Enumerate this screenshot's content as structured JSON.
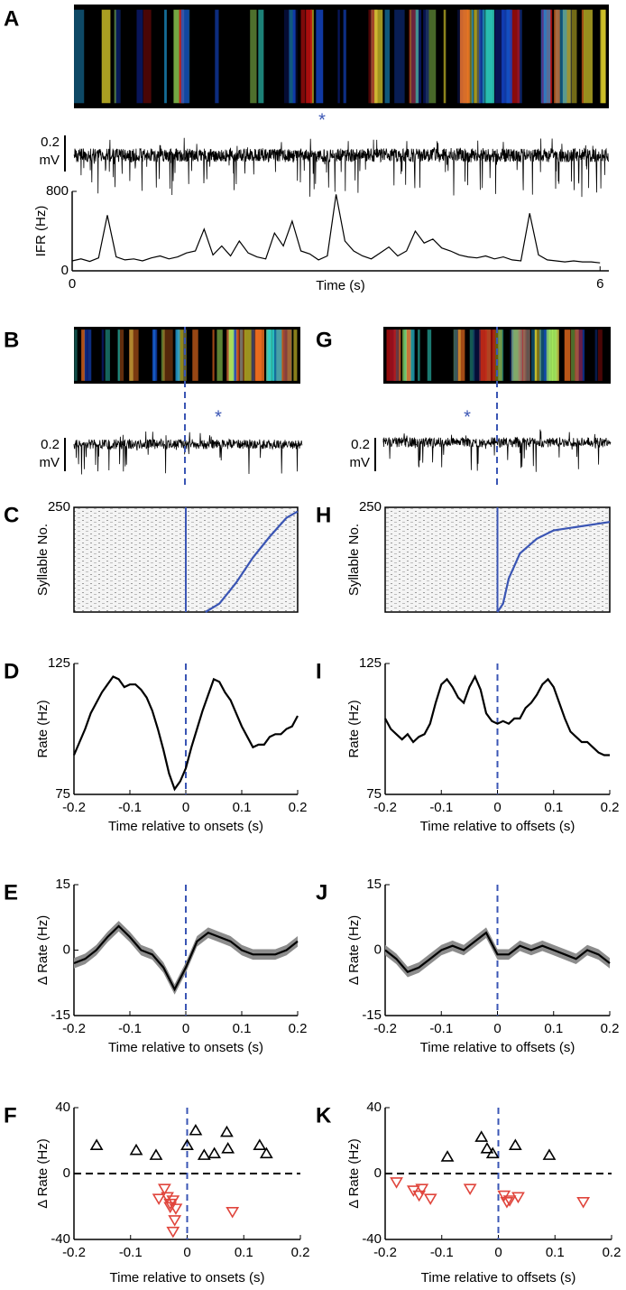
{
  "panel_labels": [
    "A",
    "B",
    "G",
    "C",
    "H",
    "D",
    "I",
    "E",
    "J",
    "F",
    "K"
  ],
  "scale_bars": [
    {
      "value": "0.2",
      "unit": "mV"
    },
    {
      "value": "0.2",
      "unit": "mV"
    },
    {
      "value": "0.2",
      "unit": "mV"
    }
  ],
  "asterisks": [
    "*",
    "*",
    "*"
  ],
  "chart_data": [
    {
      "type": "line",
      "ylabel": "IFR (Hz)",
      "xlabel": "Time (s)",
      "color": "#000000",
      "xlim": [
        0,
        6.1
      ],
      "ylim": [
        0,
        800
      ],
      "xticks": [
        0,
        6
      ],
      "yticks": [
        0,
        800
      ],
      "x": [
        0,
        0.1,
        0.2,
        0.3,
        0.4,
        0.5,
        0.6,
        0.7,
        0.8,
        0.9,
        1,
        1.1,
        1.2,
        1.3,
        1.4,
        1.5,
        1.6,
        1.7,
        1.8,
        1.9,
        2,
        2.1,
        2.2,
        2.3,
        2.4,
        2.5,
        2.6,
        2.7,
        2.8,
        2.9,
        3,
        3.1,
        3.2,
        3.3,
        3.4,
        3.5,
        3.6,
        3.7,
        3.8,
        3.9,
        4,
        4.1,
        4.2,
        4.3,
        4.4,
        4.5,
        4.6,
        4.7,
        4.8,
        4.9,
        5,
        5.1,
        5.2,
        5.3,
        5.4,
        5.5,
        5.6,
        5.7,
        5.8,
        5.9,
        6
      ],
      "values": [
        100,
        120,
        95,
        130,
        560,
        140,
        110,
        120,
        100,
        130,
        150,
        120,
        140,
        180,
        200,
        420,
        160,
        250,
        150,
        300,
        180,
        140,
        120,
        380,
        250,
        500,
        200,
        170,
        110,
        150,
        770,
        300,
        200,
        150,
        120,
        180,
        240,
        150,
        200,
        400,
        280,
        320,
        230,
        200,
        160,
        140,
        130,
        150,
        120,
        140,
        110,
        100,
        580,
        160,
        110,
        100,
        90,
        100,
        90,
        90,
        80
      ]
    },
    {
      "type": "raster",
      "ylabel": "Syllable No.",
      "color": "#3a55b4",
      "xlim": [
        -0.2,
        0.2
      ],
      "ylim": [
        0,
        250
      ],
      "yticks": [
        250
      ],
      "vline": 0,
      "x": [
        0.035,
        0.06,
        0.09,
        0.12,
        0.15,
        0.18,
        0.2
      ],
      "values": [
        0,
        20,
        70,
        130,
        180,
        225,
        240
      ]
    },
    {
      "type": "raster",
      "ylabel": "Syllable No.",
      "color": "#3a55b4",
      "xlim": [
        -0.2,
        0.2
      ],
      "ylim": [
        0,
        250
      ],
      "yticks": [
        250
      ],
      "vline": 0,
      "x": [
        0,
        0.01,
        0.02,
        0.04,
        0.07,
        0.1,
        0.2
      ],
      "values": [
        0,
        20,
        80,
        140,
        175,
        195,
        215
      ]
    },
    {
      "type": "line",
      "ylabel": "Rate (Hz)",
      "xlabel": "Time relative to onsets (s)",
      "color": "#000000",
      "xlim": [
        -0.2,
        0.2
      ],
      "ylim": [
        75,
        125
      ],
      "xticks": [
        -0.2,
        -0.1,
        0,
        0.1,
        0.2
      ],
      "yticks": [
        75,
        125
      ],
      "vline": 0,
      "x": [
        -0.2,
        -0.19,
        -0.18,
        -0.17,
        -0.16,
        -0.15,
        -0.14,
        -0.13,
        -0.12,
        -0.11,
        -0.1,
        -0.09,
        -0.08,
        -0.07,
        -0.06,
        -0.05,
        -0.04,
        -0.03,
        -0.02,
        -0.01,
        0,
        0.01,
        0.02,
        0.03,
        0.04,
        0.05,
        0.06,
        0.07,
        0.08,
        0.09,
        0.1,
        0.11,
        0.12,
        0.13,
        0.14,
        0.15,
        0.16,
        0.17,
        0.18,
        0.19,
        0.2
      ],
      "values": [
        90,
        95,
        100,
        106,
        110,
        114,
        117,
        120,
        119,
        116,
        117,
        117,
        115,
        112,
        107,
        100,
        92,
        83,
        77,
        80,
        85,
        93,
        100,
        107,
        113,
        119,
        118,
        114,
        111,
        106,
        101,
        97,
        93,
        94,
        94,
        97,
        98,
        98,
        100,
        101,
        105
      ]
    },
    {
      "type": "line",
      "ylabel": "Rate (Hz)",
      "xlabel": "Time relative to offsets (s)",
      "color": "#000000",
      "xlim": [
        -0.2,
        0.2
      ],
      "ylim": [
        75,
        125
      ],
      "xticks": [
        -0.2,
        -0.1,
        0,
        0.1,
        0.2
      ],
      "yticks": [
        75,
        125
      ],
      "vline": 0,
      "x": [
        -0.2,
        -0.19,
        -0.18,
        -0.17,
        -0.16,
        -0.15,
        -0.14,
        -0.13,
        -0.12,
        -0.11,
        -0.1,
        -0.09,
        -0.08,
        -0.07,
        -0.06,
        -0.05,
        -0.04,
        -0.03,
        -0.02,
        -0.01,
        0,
        0.01,
        0.02,
        0.03,
        0.04,
        0.05,
        0.06,
        0.07,
        0.08,
        0.09,
        0.1,
        0.11,
        0.12,
        0.13,
        0.14,
        0.15,
        0.16,
        0.17,
        0.18,
        0.19,
        0.2
      ],
      "values": [
        104,
        100,
        98,
        96,
        98,
        95,
        97,
        98,
        102,
        110,
        117,
        119,
        116,
        112,
        110,
        116,
        120,
        115,
        106,
        103,
        102,
        103,
        102,
        104,
        104,
        108,
        110,
        113,
        117,
        119,
        116,
        110,
        104,
        99,
        97,
        95,
        95,
        93,
        91,
        90,
        90
      ]
    },
    {
      "type": "band",
      "ylabel": "Δ Rate (Hz)",
      "xlabel": "Time relative to onsets (s)",
      "color": "#000000",
      "band_color": "#8c8c8c",
      "xlim": [
        -0.2,
        0.2
      ],
      "ylim": [
        -15,
        15
      ],
      "xticks": [
        -0.2,
        -0.1,
        0,
        0.1,
        0.2
      ],
      "yticks": [
        -15,
        0,
        15
      ],
      "vline": 0,
      "x": [
        -0.2,
        -0.18,
        -0.16,
        -0.14,
        -0.12,
        -0.1,
        -0.08,
        -0.06,
        -0.04,
        -0.02,
        0,
        0.02,
        0.04,
        0.06,
        0.08,
        0.1,
        0.12,
        0.14,
        0.16,
        0.18,
        0.2
      ],
      "values": [
        -3,
        -2,
        0,
        3,
        5.5,
        3,
        0,
        -1,
        -4,
        -9,
        -4,
        2,
        4,
        3,
        2,
        0,
        -1,
        -1,
        -1,
        0,
        2
      ],
      "errors": [
        1.2,
        1.2,
        1.2,
        1.2,
        1.2,
        1.2,
        1.2,
        1.2,
        1.2,
        1.2,
        1.2,
        1.2,
        1.2,
        1.2,
        1.2,
        1.2,
        1.2,
        1.2,
        1.2,
        1.2,
        1.2
      ]
    },
    {
      "type": "band",
      "ylabel": "Δ Rate (Hz)",
      "xlabel": "Time relative to offsets (s)",
      "color": "#000000",
      "band_color": "#8c8c8c",
      "xlim": [
        -0.2,
        0.2
      ],
      "ylim": [
        -15,
        15
      ],
      "xticks": [
        -0.2,
        -0.1,
        0,
        0.1,
        0.2
      ],
      "yticks": [
        -15,
        0,
        15
      ],
      "vline": 0,
      "x": [
        -0.2,
        -0.18,
        -0.16,
        -0.14,
        -0.12,
        -0.1,
        -0.08,
        -0.06,
        -0.04,
        -0.02,
        0,
        0.02,
        0.04,
        0.06,
        0.08,
        0.1,
        0.12,
        0.14,
        0.16,
        0.18,
        0.2
      ],
      "values": [
        0,
        -2,
        -5,
        -4,
        -2,
        0,
        1,
        0,
        2,
        4,
        -1,
        -1,
        1,
        0,
        1,
        0,
        -1,
        -2,
        0,
        -1,
        -3
      ],
      "errors": [
        1.2,
        1.2,
        1.2,
        1.2,
        1.2,
        1.2,
        1.2,
        1.2,
        1.2,
        1.2,
        1.2,
        1.2,
        1.2,
        1.2,
        1.2,
        1.2,
        1.2,
        1.2,
        1.2,
        1.2,
        1.2
      ]
    },
    {
      "type": "scatter",
      "ylabel": "Δ Rate (Hz)",
      "xlabel": "Time relative to onsets (s)",
      "xlim": [
        -0.2,
        0.2
      ],
      "ylim": [
        -40,
        40
      ],
      "xticks": [
        -0.2,
        -0.1,
        0,
        0.1,
        0.2
      ],
      "yticks": [
        -40,
        0,
        40
      ],
      "vline": 0,
      "hline": 0,
      "series": [
        {
          "color": "#000000",
          "marker": "triangle-up",
          "x": [
            -0.16,
            -0.09,
            -0.055,
            0,
            0.015,
            0.03,
            0.048,
            0.07,
            0.072,
            0.128,
            0.14
          ],
          "values": [
            17,
            14,
            11,
            17,
            26,
            11,
            12,
            25,
            15,
            17,
            12
          ]
        },
        {
          "color": "#e0453c",
          "marker": "triangle-down",
          "x": [
            -0.05,
            -0.04,
            -0.035,
            -0.03,
            -0.025,
            -0.02,
            -0.022,
            -0.03,
            -0.025,
            0.08
          ],
          "values": [
            -15,
            -9,
            -14,
            -18,
            -16,
            -21,
            -28,
            -20,
            -35,
            -23
          ]
        }
      ]
    },
    {
      "type": "scatter",
      "ylabel": "Δ Rate (Hz)",
      "xlabel": "Time relative to offsets (s)",
      "xlim": [
        -0.2,
        0.2
      ],
      "ylim": [
        -40,
        40
      ],
      "xticks": [
        -0.2,
        -0.1,
        0,
        0.1,
        0.2
      ],
      "yticks": [
        -40,
        0,
        40
      ],
      "vline": 0,
      "hline": 0,
      "series": [
        {
          "color": "#000000",
          "marker": "triangle-up",
          "x": [
            -0.09,
            -0.03,
            -0.02,
            -0.01,
            0.03,
            0.09
          ],
          "values": [
            10,
            22,
            15,
            12,
            17,
            11
          ]
        },
        {
          "color": "#e0453c",
          "marker": "triangle-down",
          "x": [
            -0.18,
            -0.15,
            -0.14,
            -0.135,
            -0.12,
            -0.05,
            0.01,
            0.015,
            0.02,
            0.035,
            0.15
          ],
          "values": [
            -5,
            -10,
            -13,
            -9,
            -15,
            -9,
            -13,
            -17,
            -16,
            -14,
            -17
          ]
        }
      ]
    }
  ]
}
